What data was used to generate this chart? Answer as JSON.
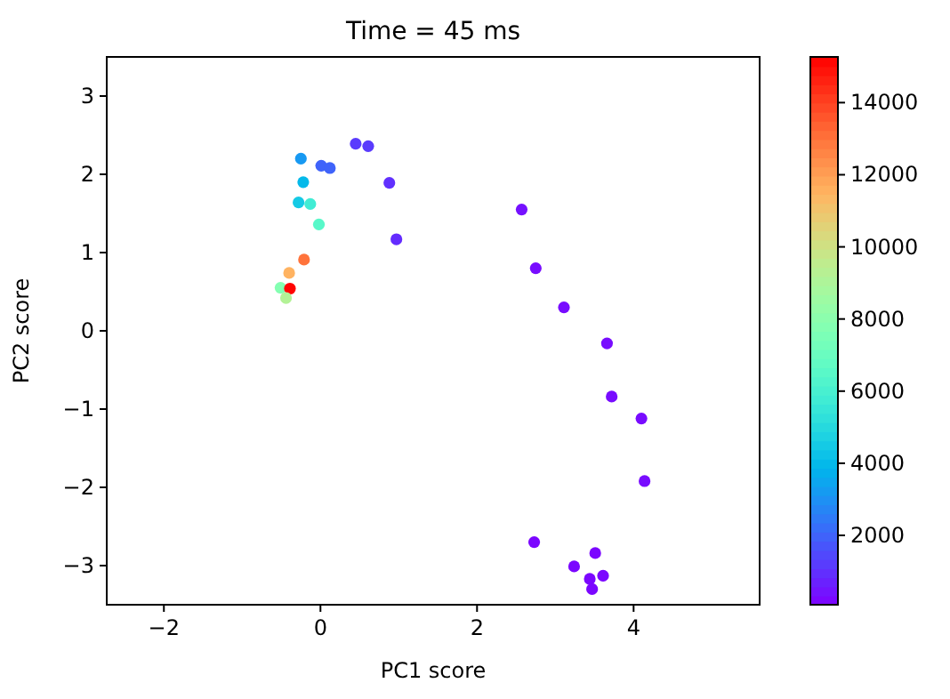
{
  "chart_data": {
    "type": "scatter",
    "title": "Time = 45 ms",
    "xlabel": "PC1 score",
    "ylabel": "PC2 score",
    "xlim": [
      -2.73,
      5.61
    ],
    "ylim": [
      -3.5,
      3.5
    ],
    "xticks": [
      {
        "value": -2,
        "label": "−2"
      },
      0,
      2,
      4
    ],
    "yticks": [
      {
        "value": -3,
        "label": "−3"
      },
      {
        "value": -2,
        "label": "−2"
      },
      {
        "value": -1,
        "label": "−1"
      },
      0,
      1,
      2,
      3
    ],
    "clim": [
      77,
      15267
    ],
    "cticks": [
      2000,
      4000,
      6000,
      8000,
      10000,
      12000,
      14000
    ],
    "marker": "circle",
    "grid": false,
    "x": [
      0.45,
      0.61,
      -0.25,
      0.01,
      0.12,
      0.88,
      -0.22,
      -0.28,
      -0.13,
      -0.02,
      0.97,
      2.57,
      2.75,
      -0.21,
      -0.4,
      -0.51,
      -0.39,
      -0.44,
      3.11,
      3.66,
      3.72,
      4.1,
      4.14,
      2.73,
      3.51,
      3.24,
      3.61,
      3.44,
      3.47
    ],
    "values": [
      2.39,
      2.36,
      2.2,
      2.11,
      2.08,
      1.89,
      1.9,
      1.64,
      1.62,
      1.36,
      1.17,
      1.55,
      0.8,
      0.91,
      0.74,
      0.55,
      0.54,
      0.42,
      0.3,
      -0.16,
      -0.84,
      -1.12,
      -1.92,
      -2.7,
      -2.84,
      -3.01,
      -3.13,
      -3.17,
      -3.3
    ],
    "cvalues": [
      1200,
      1200,
      3200,
      2000,
      2000,
      1000,
      4000,
      4500,
      5800,
      6500,
      900,
      400,
      300,
      13000,
      11500,
      7800,
      15200,
      9200,
      300,
      300,
      300,
      300,
      300,
      200,
      200,
      200,
      200,
      200,
      200
    ]
  }
}
